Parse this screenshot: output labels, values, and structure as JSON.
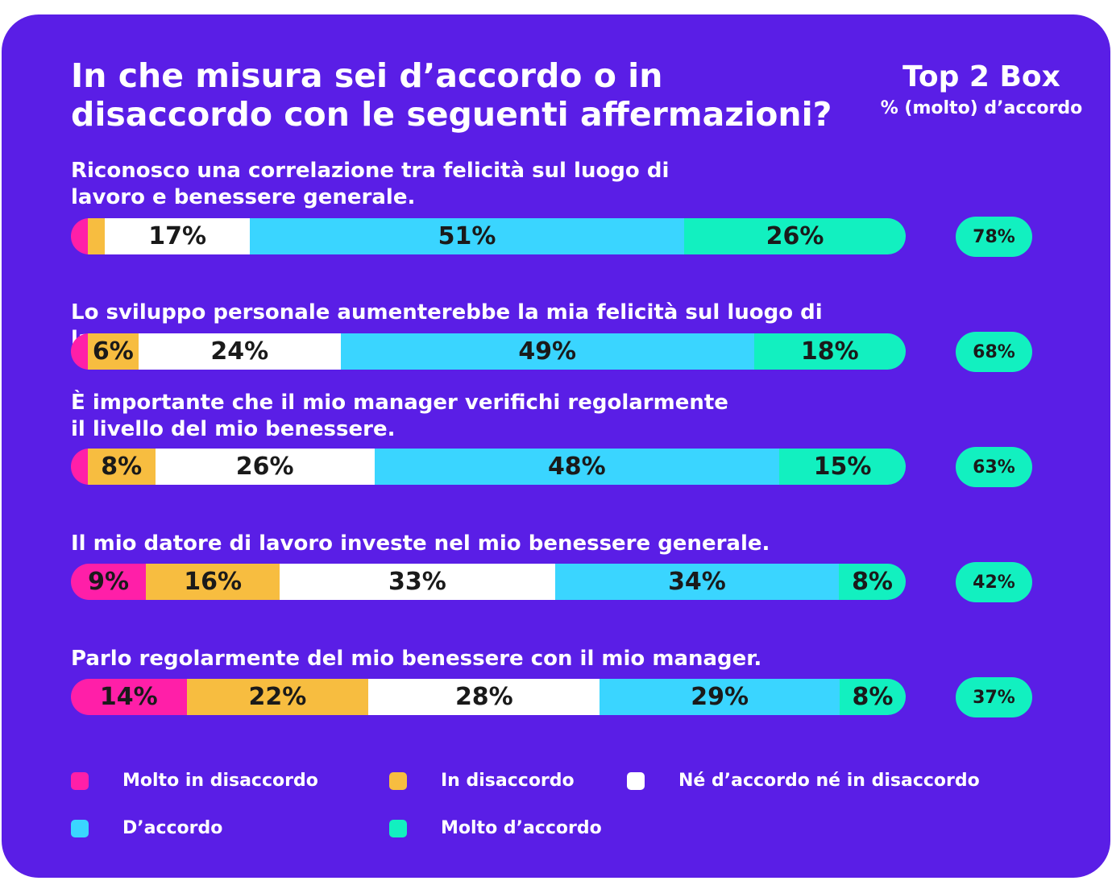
{
  "title": "In che misura sei d’accordo o in disaccordo con le seguenti affermazioni?",
  "top2box": {
    "title": "Top 2 Box",
    "subtitle": "% (molto) d’accordo"
  },
  "colors": {
    "background": "#5a1ee6",
    "Molto in disaccordo": "#ff1fa8",
    "In disaccordo": "#f7bd40",
    "Né d’accordo né in disaccordo": "#ffffff",
    "D’accordo": "#3ad5ff",
    "Molto d’accordo": "#12f0c0"
  },
  "chart_data": {
    "type": "bar",
    "orientation": "horizontal",
    "stacked": true,
    "unit": "%",
    "categories": [
      "Riconosco una correlazione tra felicità sul luogo di lavoro e benessere generale.",
      "Lo sviluppo personale aumenterebbe la mia felicità sul luogo di lavoro.",
      "È importante che il mio manager verifichi regolarmente il livello del mio benessere.",
      "Il mio datore di lavoro investe nel mio benessere generale.",
      "Parlo regolarmente del mio benessere con il mio manager."
    ],
    "series": [
      {
        "name": "Molto in disaccordo",
        "values": [
          2,
          2,
          2,
          9,
          14
        ],
        "labels": [
          "",
          "",
          "",
          "9%",
          "14%"
        ]
      },
      {
        "name": "In disaccordo",
        "values": [
          2,
          6,
          8,
          16,
          22
        ],
        "labels": [
          "",
          "6%",
          "8%",
          "16%",
          "22%"
        ]
      },
      {
        "name": "Né d’accordo né in disaccordo",
        "values": [
          17,
          24,
          26,
          33,
          28
        ],
        "labels": [
          "17%",
          "24%",
          "26%",
          "33%",
          "28%"
        ]
      },
      {
        "name": "D’accordo",
        "values": [
          51,
          49,
          48,
          34,
          29
        ],
        "labels": [
          "51%",
          "49%",
          "48%",
          "34%",
          "29%"
        ]
      },
      {
        "name": "Molto d’accordo",
        "values": [
          26,
          18,
          15,
          8,
          8
        ],
        "labels": [
          "26%",
          "18%",
          "15%",
          "8%",
          "8%"
        ]
      }
    ],
    "top2box": [
      "78%",
      "68%",
      "63%",
      "42%",
      "37%"
    ],
    "legend": {
      "position": "bottom",
      "entries": [
        "Molto in disaccordo",
        "In disaccordo",
        "Né d’accordo né in disaccordo",
        "D’accordo",
        "Molto d’accordo"
      ]
    }
  }
}
